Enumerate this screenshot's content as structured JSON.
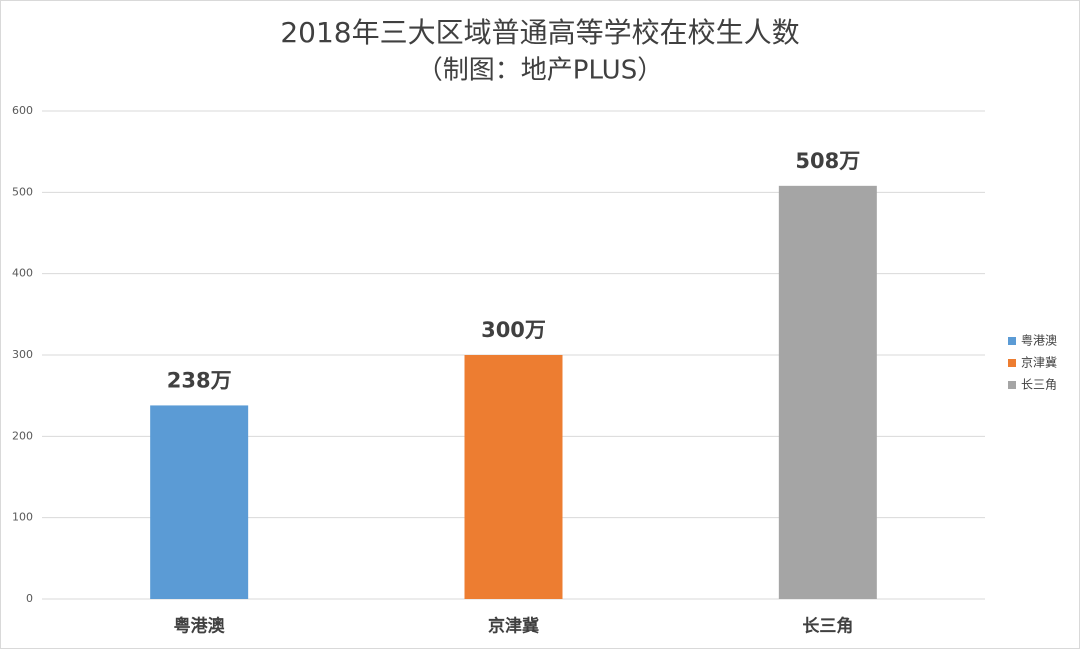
{
  "chart_data": {
    "type": "bar",
    "title": "2018年三大区域普通高等学校在校生人数",
    "subtitle": "（制图：地产PLUS）",
    "categories": [
      "粤港澳",
      "京津冀",
      "长三角"
    ],
    "values": [
      238,
      300,
      508
    ],
    "value_labels": [
      "238万",
      "300万",
      "508万"
    ],
    "colors": [
      "#5b9bd5",
      "#ed7d31",
      "#a5a5a5"
    ],
    "ylim": [
      0,
      600
    ],
    "yticks": [
      0,
      100,
      200,
      300,
      400,
      500,
      600
    ],
    "grid": true,
    "legend": "right"
  }
}
